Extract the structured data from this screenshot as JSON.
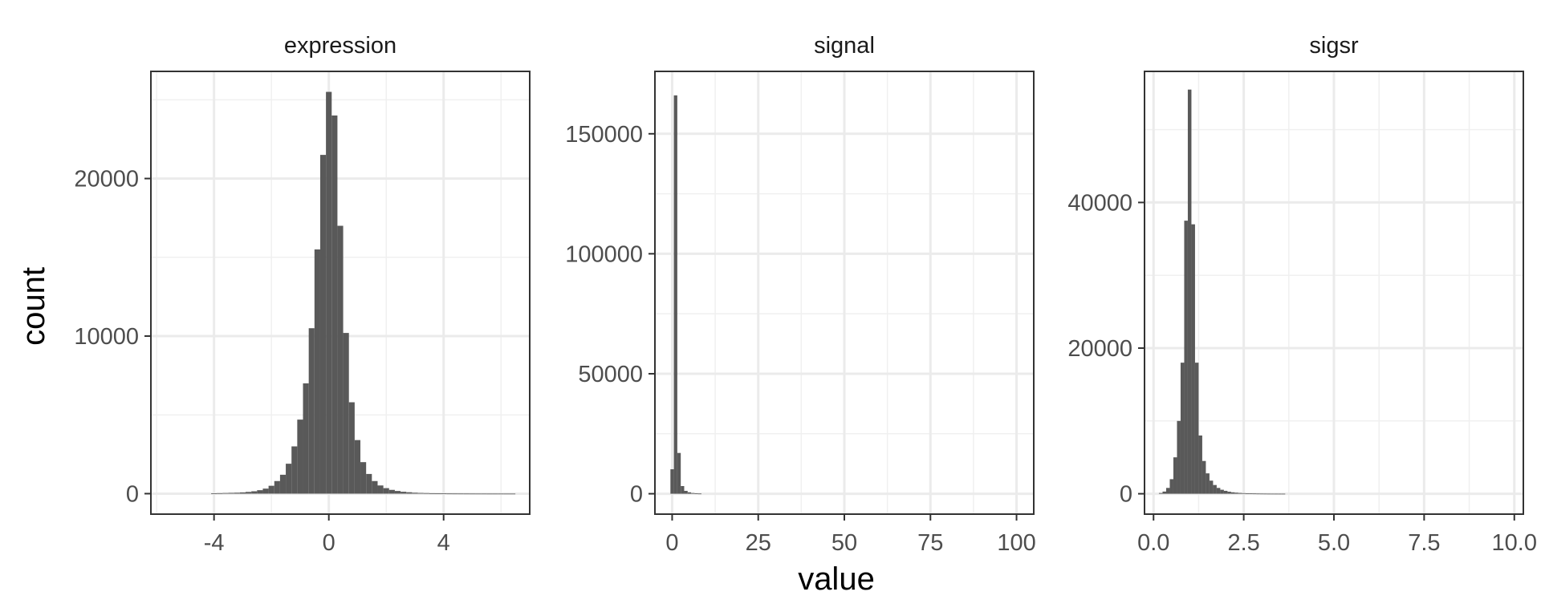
{
  "chart_data": {
    "type": "bar",
    "xlabel": "value",
    "ylabel": "count",
    "grid": true,
    "bar_color": "#595959",
    "panels": [
      {
        "title": "expression",
        "xlim": [
          -6.2,
          7.0
        ],
        "ylim": [
          -1300,
          26800
        ],
        "x_ticks": [
          -4,
          0,
          4
        ],
        "x_tick_labels": [
          "-4",
          "0",
          "4"
        ],
        "x_minor_ticks": [
          -6,
          -2,
          2,
          6
        ],
        "y_ticks": [
          0,
          10000,
          20000
        ],
        "y_tick_labels": [
          "0",
          "10000",
          "20000"
        ],
        "y_minor_ticks": [
          5000,
          15000,
          25000
        ],
        "bin_width": 0.2,
        "bins_x": [
          -4.0,
          -3.8,
          -3.6,
          -3.4,
          -3.2,
          -3.0,
          -2.8,
          -2.6,
          -2.4,
          -2.2,
          -2.0,
          -1.8,
          -1.6,
          -1.4,
          -1.2,
          -1.0,
          -0.8,
          -0.6,
          -0.4,
          -0.2,
          0.0,
          0.2,
          0.4,
          0.6,
          0.8,
          1.0,
          1.2,
          1.4,
          1.6,
          1.8,
          2.0,
          2.2,
          2.4,
          2.6,
          2.8,
          3.0,
          3.2,
          3.4,
          3.6,
          3.8,
          4.0,
          4.2,
          4.4,
          4.6,
          4.8,
          5.0,
          5.2,
          5.4,
          5.6,
          5.8,
          6.0,
          6.2,
          6.4
        ],
        "counts": [
          20,
          30,
          40,
          50,
          60,
          80,
          110,
          150,
          220,
          320,
          500,
          800,
          1200,
          1900,
          3000,
          4700,
          7000,
          10500,
          15500,
          21500,
          25500,
          24000,
          17000,
          10200,
          5800,
          3400,
          2000,
          1250,
          800,
          520,
          350,
          240,
          170,
          120,
          90,
          60,
          45,
          35,
          25,
          18,
          14,
          10,
          8,
          6,
          5,
          4,
          3,
          3,
          2,
          2,
          2,
          1,
          1
        ]
      },
      {
        "title": "signal",
        "xlim": [
          -5,
          105
        ],
        "ylim": [
          -8500,
          176000
        ],
        "x_ticks": [
          0,
          25,
          50,
          75,
          100
        ],
        "x_tick_labels": [
          "0",
          "25",
          "50",
          "75",
          "100"
        ],
        "x_minor_ticks": [
          12.5,
          37.5,
          62.5,
          87.5
        ],
        "y_ticks": [
          0,
          50000,
          100000,
          150000
        ],
        "y_tick_labels": [
          "0",
          "50000",
          "100000",
          "150000"
        ],
        "y_minor_ticks": [
          25000,
          75000,
          125000
        ],
        "bin_width": 1.0,
        "bins_x": [
          0,
          1,
          2,
          3,
          4,
          5,
          6,
          7,
          8
        ],
        "counts": [
          10200,
          166000,
          17000,
          3200,
          1200,
          600,
          300,
          150,
          80
        ]
      },
      {
        "title": "sigsr",
        "xlim": [
          -0.25,
          10.25
        ],
        "ylim": [
          -2800,
          58000
        ],
        "x_ticks": [
          0.0,
          2.5,
          5.0,
          7.5,
          10.0
        ],
        "x_tick_labels": [
          "0.0",
          "2.5",
          "5.0",
          "7.5",
          "10.0"
        ],
        "x_minor_ticks": [
          1.25,
          3.75,
          6.25,
          8.75
        ],
        "y_ticks": [
          0,
          20000,
          40000
        ],
        "y_tick_labels": [
          "0",
          "20000",
          "40000"
        ],
        "y_minor_ticks": [
          10000,
          30000,
          50000
        ],
        "bin_width": 0.1,
        "bins_x": [
          0.2,
          0.3,
          0.4,
          0.5,
          0.6,
          0.7,
          0.8,
          0.9,
          1.0,
          1.1,
          1.2,
          1.3,
          1.4,
          1.5,
          1.6,
          1.7,
          1.8,
          1.9,
          2.0,
          2.1,
          2.2,
          2.3,
          2.4,
          2.5,
          2.6,
          2.7,
          2.8,
          2.9,
          3.0,
          3.1,
          3.2,
          3.3,
          3.4,
          3.5,
          3.6
        ],
        "counts": [
          100,
          300,
          800,
          2000,
          5000,
          10000,
          18000,
          37500,
          55500,
          37000,
          18000,
          8000,
          4500,
          2800,
          1800,
          1200,
          800,
          550,
          400,
          280,
          200,
          150,
          110,
          80,
          60,
          45,
          35,
          25,
          20,
          15,
          10,
          8,
          6,
          5,
          4
        ]
      }
    ]
  }
}
